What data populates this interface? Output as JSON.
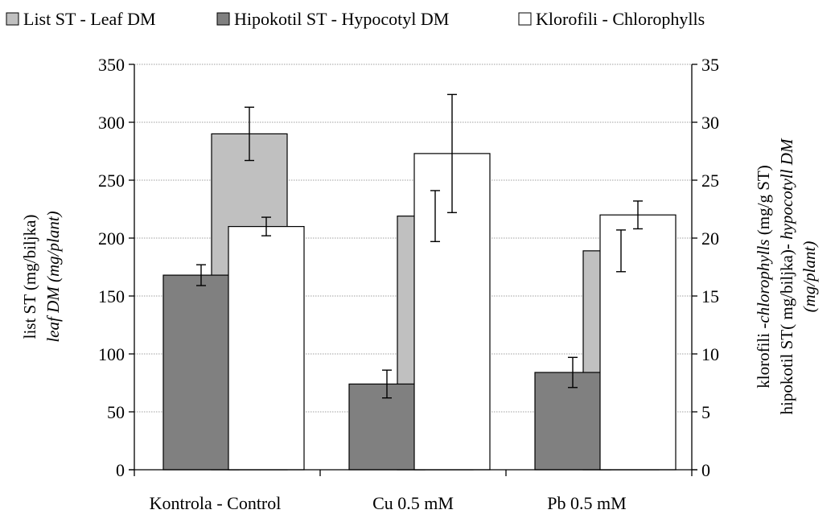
{
  "chart_data": {
    "type": "bar",
    "categories": [
      "Kontrola - Control",
      "Cu 0.5 mM",
      "Pb 0.5 mM"
    ],
    "legend": [
      {
        "label": "List ST - Leaf DM",
        "color": "#c0c0c0"
      },
      {
        "label": "Hipokotil ST - Hypocotyl DM",
        "color": "#808080"
      },
      {
        "label": "Klorofili - Chlorophylls",
        "color": "#ffffff"
      }
    ],
    "series": [
      {
        "name": "List ST - Leaf DM",
        "axis": "left",
        "values": [
          290,
          219,
          189
        ],
        "errors": [
          23,
          22,
          18
        ]
      },
      {
        "name": "Hipokotil ST - Hypocotyl DM",
        "axis": "left",
        "values": [
          168,
          74,
          84
        ],
        "errors": [
          9,
          12,
          13
        ]
      },
      {
        "name": "Klorofili - Chlorophylls",
        "axis": "right",
        "values": [
          21.0,
          27.3,
          22.0
        ],
        "errors": [
          0.8,
          5.1,
          1.2
        ]
      }
    ],
    "y_left": {
      "ticks": [
        0,
        50,
        100,
        150,
        200,
        250,
        300,
        350
      ],
      "ylim": [
        0,
        350
      ],
      "label_line1": "list ST (mg/biljka)",
      "label_line2": "leaf DM (mg/plant)"
    },
    "y_right": {
      "ticks": [
        0,
        5,
        10,
        15,
        20,
        25,
        30,
        35
      ],
      "ylim": [
        0,
        35
      ],
      "label_line1_a": "klorofili -",
      "label_line1_b": "chlorophylls",
      "label_line1_c": " (mg/g ST)",
      "label_line2_a": "hipokotil ST( mg/biljka)- ",
      "label_line2_b": "hypocotyll DM",
      "label_line3": "(mg/plant)"
    },
    "grid": true
  }
}
